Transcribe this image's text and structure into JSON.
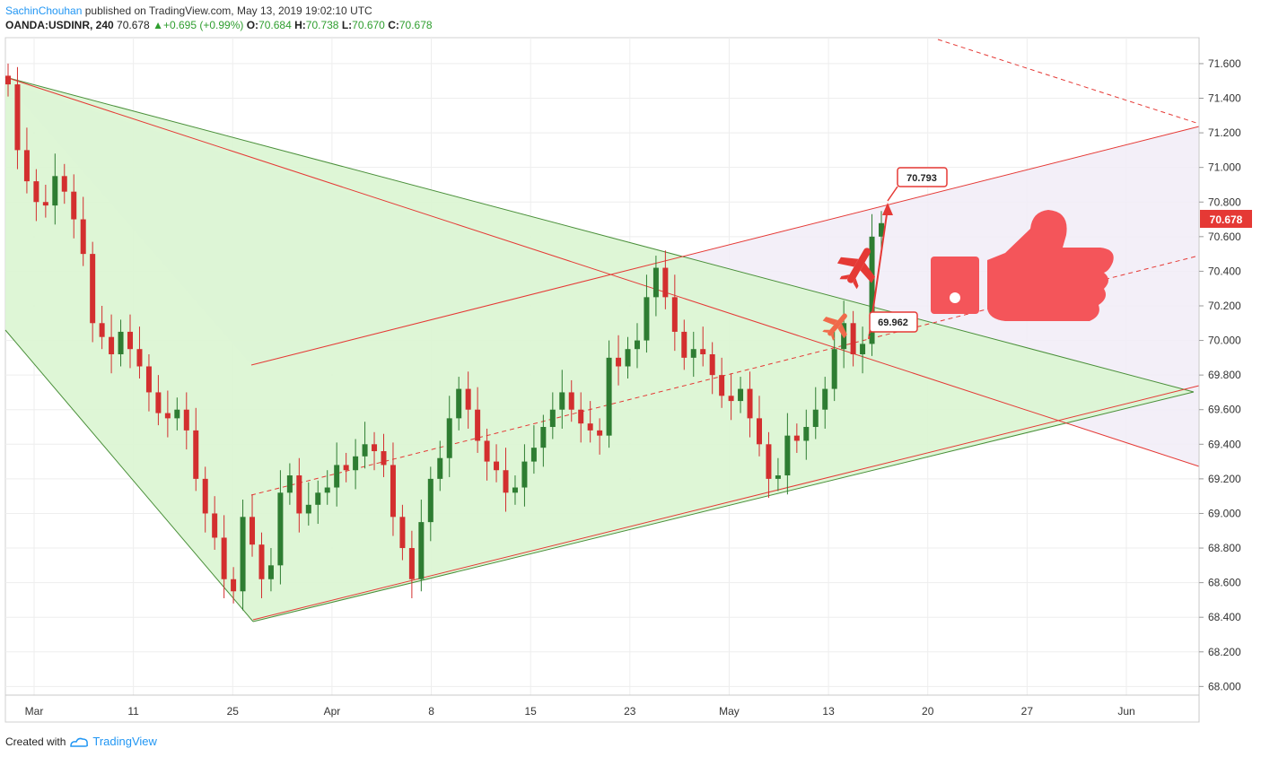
{
  "header": {
    "author": "SachinChouhan",
    "published_text": "published on TradingView.com, May 13, 2019 19:02:10 UTC",
    "symbol": "OANDA:USDINR, 240",
    "last": "70.678",
    "change": "+0.695 (+0.99%)",
    "open_label": "O:",
    "open": "70.684",
    "high_label": "H:",
    "high": "70.738",
    "low_label": "L:",
    "low": "70.670",
    "close_label": "C:",
    "close": "70.678"
  },
  "footer": {
    "created_with": "Created with",
    "brand": "TradingView"
  },
  "colors": {
    "up": "#2e7d32",
    "down": "#d32f2f",
    "accent": "#e53935",
    "wedge_fill": "#d8f5d0",
    "channel_fill": "#efe9f7"
  },
  "chart_data": {
    "type": "candlestick",
    "y_ticks": [
      "71.600",
      "71.400",
      "71.200",
      "71.000",
      "70.800",
      "70.600",
      "70.400",
      "70.200",
      "70.000",
      "69.800",
      "69.600",
      "69.400",
      "69.200",
      "69.000",
      "68.800",
      "68.600",
      "68.400",
      "68.200",
      "68.000"
    ],
    "ylim": [
      67.95,
      71.75
    ],
    "x_ticks": [
      "Mar",
      "11",
      "25",
      "Apr",
      "8",
      "15",
      "23",
      "May",
      "13",
      "20",
      "27",
      "Jun"
    ],
    "current_price_label": "70.678",
    "annotations": {
      "target_label": "70.793",
      "support_label": "69.962"
    },
    "series": [
      {
        "x": 0,
        "close": 71.48
      },
      {
        "x": 3,
        "close": 71.1
      },
      {
        "x": 6,
        "close": 70.92
      },
      {
        "x": 9,
        "close": 70.8
      },
      {
        "x": 12,
        "close": 70.78
      },
      {
        "x": 15,
        "close": 70.95
      },
      {
        "x": 18,
        "close": 70.86
      },
      {
        "x": 21,
        "close": 70.7
      },
      {
        "x": 24,
        "close": 70.5
      },
      {
        "x": 27,
        "close": 70.1
      },
      {
        "x": 30,
        "close": 70.02
      },
      {
        "x": 33,
        "close": 69.92
      },
      {
        "x": 36,
        "close": 70.05
      },
      {
        "x": 39,
        "close": 69.95
      },
      {
        "x": 42,
        "close": 69.85
      },
      {
        "x": 45,
        "close": 69.7
      },
      {
        "x": 48,
        "close": 69.58
      },
      {
        "x": 51,
        "close": 69.55
      },
      {
        "x": 54,
        "close": 69.6
      },
      {
        "x": 57,
        "close": 69.48
      },
      {
        "x": 60,
        "close": 69.2
      },
      {
        "x": 63,
        "close": 69.0
      },
      {
        "x": 66,
        "close": 68.86
      },
      {
        "x": 69,
        "close": 68.62
      },
      {
        "x": 72,
        "close": 68.55
      },
      {
        "x": 75,
        "close": 68.98
      },
      {
        "x": 78,
        "close": 68.82
      },
      {
        "x": 81,
        "close": 68.62
      },
      {
        "x": 84,
        "close": 68.7
      },
      {
        "x": 87,
        "close": 69.12
      },
      {
        "x": 90,
        "close": 69.22
      },
      {
        "x": 93,
        "close": 69.0
      },
      {
        "x": 96,
        "close": 69.05
      },
      {
        "x": 99,
        "close": 69.12
      },
      {
        "x": 102,
        "close": 69.15
      },
      {
        "x": 105,
        "close": 69.28
      },
      {
        "x": 108,
        "close": 69.25
      },
      {
        "x": 111,
        "close": 69.33
      },
      {
        "x": 114,
        "close": 69.4
      },
      {
        "x": 117,
        "close": 69.36
      },
      {
        "x": 120,
        "close": 69.28
      },
      {
        "x": 123,
        "close": 68.98
      },
      {
        "x": 126,
        "close": 68.8
      },
      {
        "x": 129,
        "close": 68.62
      },
      {
        "x": 132,
        "close": 68.95
      },
      {
        "x": 135,
        "close": 69.2
      },
      {
        "x": 138,
        "close": 69.32
      },
      {
        "x": 141,
        "close": 69.55
      },
      {
        "x": 144,
        "close": 69.72
      },
      {
        "x": 147,
        "close": 69.6
      },
      {
        "x": 150,
        "close": 69.42
      },
      {
        "x": 153,
        "close": 69.3
      },
      {
        "x": 156,
        "close": 69.25
      },
      {
        "x": 159,
        "close": 69.12
      },
      {
        "x": 162,
        "close": 69.15
      },
      {
        "x": 165,
        "close": 69.3
      },
      {
        "x": 168,
        "close": 69.38
      },
      {
        "x": 171,
        "close": 69.5
      },
      {
        "x": 174,
        "close": 69.6
      },
      {
        "x": 177,
        "close": 69.7
      },
      {
        "x": 180,
        "close": 69.6
      },
      {
        "x": 183,
        "close": 69.52
      },
      {
        "x": 186,
        "close": 69.48
      },
      {
        "x": 189,
        "close": 69.45
      },
      {
        "x": 192,
        "close": 69.9
      },
      {
        "x": 195,
        "close": 69.85
      },
      {
        "x": 198,
        "close": 69.95
      },
      {
        "x": 201,
        "close": 70.0
      },
      {
        "x": 204,
        "close": 70.25
      },
      {
        "x": 207,
        "close": 70.42
      },
      {
        "x": 210,
        "close": 70.25
      },
      {
        "x": 213,
        "close": 70.05
      },
      {
        "x": 216,
        "close": 69.9
      },
      {
        "x": 219,
        "close": 69.95
      },
      {
        "x": 222,
        "close": 69.92
      },
      {
        "x": 225,
        "close": 69.8
      },
      {
        "x": 228,
        "close": 69.68
      },
      {
        "x": 231,
        "close": 69.65
      },
      {
        "x": 234,
        "close": 69.72
      },
      {
        "x": 237,
        "close": 69.55
      },
      {
        "x": 240,
        "close": 69.4
      },
      {
        "x": 243,
        "close": 69.2
      },
      {
        "x": 246,
        "close": 69.22
      },
      {
        "x": 249,
        "close": 69.45
      },
      {
        "x": 252,
        "close": 69.42
      },
      {
        "x": 255,
        "close": 69.5
      },
      {
        "x": 258,
        "close": 69.6
      },
      {
        "x": 261,
        "close": 69.72
      },
      {
        "x": 264,
        "close": 69.95
      },
      {
        "x": 267,
        "close": 70.1
      },
      {
        "x": 270,
        "close": 69.92
      },
      {
        "x": 273,
        "close": 69.98
      },
      {
        "x": 276,
        "close": 70.6
      },
      {
        "x": 279,
        "close": 70.678
      }
    ]
  }
}
